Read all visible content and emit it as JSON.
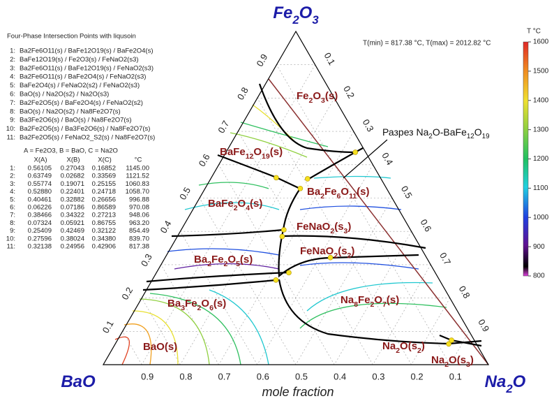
{
  "chart_data": {
    "type": "ternary",
    "corners": {
      "top": "Fe2O3",
      "left": "BaO",
      "right": "Na2O"
    },
    "axis_label": "mole fraction",
    "ticks": [
      0.1,
      0.2,
      0.3,
      0.4,
      0.5,
      0.6,
      0.7,
      0.8,
      0.9
    ],
    "temperature_text": "T(min) = 817.38 °C, T(max) = 2012.82 °C",
    "annotation": "Разрез Na2O-BaFe12O19",
    "phases": [
      "Fe2O3(s)",
      "BaFe12O19(s)",
      "Ba2Fe6O11(s)",
      "BaFe2O4(s)",
      "FeNaO2(s3)",
      "FeNaO2(s2)",
      "Ba2Fe2O5(s)",
      "Na8Fe2O7(s)",
      "Ba3Fe2O6(s)",
      "BaO(s)",
      "Na2O(s2)",
      "Na2O(s3)"
    ],
    "colorbar": {
      "title": "T °C",
      "lim": [
        800,
        1600
      ],
      "ticks": [
        800,
        900,
        1000,
        1100,
        1200,
        1300,
        1400,
        1500,
        1600
      ]
    },
    "points": {
      "title": "Four-Phase Intersection Points with liqusoin",
      "reactions": [
        {
          "id": "1:",
          "text": "Ba2Fe6O11(s) / BaFe12O19(s) / BaFe2O4(s)"
        },
        {
          "id": "2:",
          "text": "BaFe12O19(s) / Fe2O3(s) / FeNaO2(s3)"
        },
        {
          "id": "3:",
          "text": "Ba2Fe6O11(s) / BaFe12O19(s) / FeNaO2(s3)"
        },
        {
          "id": "4:",
          "text": "Ba2Fe6O11(s) / BaFe2O4(s) / FeNaO2(s3)"
        },
        {
          "id": "5:",
          "text": "BaFe2O4(s) / FeNaO2(s2) / FeNaO2(s3)"
        },
        {
          "id": "6:",
          "text": "BaO(s) / Na2O(s2) / Na2O(s3)"
        },
        {
          "id": "7:",
          "text": "Ba2Fe2O5(s) / BaFe2O4(s) / FeNaO2(s2)"
        },
        {
          "id": "8:",
          "text": "BaO(s) / Na2O(s2) / Na8Fe2O7(s)"
        },
        {
          "id": "9:",
          "text": "Ba3Fe2O6(s) / BaO(s) / Na8Fe2O7(s)"
        },
        {
          "id": "10:",
          "text": "Ba2Fe2O5(s) / Ba3Fe2O6(s) / Na8Fe2O7(s)"
        },
        {
          "id": "11:",
          "text": "Ba2Fe2O5(s) / FeNaO2_S2(s) / Na8Fe2O7(s)"
        }
      ],
      "key": "A = Fe2O3, B = BaO, C = Na2O",
      "columns": [
        "X(A)",
        "X(B)",
        "X(C)",
        "°C"
      ],
      "rows": [
        {
          "id": "1:",
          "xa": 0.56105,
          "xb": 0.27043,
          "xc": 0.16852,
          "t": {
            "value": 1145,
            "label": "1145.00"
          }
        },
        {
          "id": "2:",
          "xa": 0.63749,
          "xb": 0.02682,
          "xc": 0.33569,
          "t": 1121.52
        },
        {
          "id": "3:",
          "xa": 0.55774,
          "xb": 0.19071,
          "xc": 0.25155,
          "t": 1060.83
        },
        {
          "id": "4:",
          "xa": {
            "value": 0.5288,
            "label": "0.52880"
          },
          "xb": 0.22401,
          "xc": 0.24718,
          "t": {
            "value": 1058.7,
            "label": "1058.70"
          }
        },
        {
          "id": "5:",
          "xa": 0.40461,
          "xb": 0.32882,
          "xc": 0.26656,
          "t": 996.88
        },
        {
          "id": "6:",
          "xa": 0.06226,
          "xb": 0.07186,
          "xc": 0.86589,
          "t": 970.08
        },
        {
          "id": "7:",
          "xa": 0.38466,
          "xb": 0.34322,
          "xc": 0.27213,
          "t": 948.06
        },
        {
          "id": "8:",
          "xa": 0.07324,
          "xb": 0.05921,
          "xc": 0.86755,
          "t": {
            "value": 963.2,
            "label": "963.20"
          }
        },
        {
          "id": "9:",
          "xa": 0.25409,
          "xb": 0.42469,
          "xc": 0.32122,
          "t": 854.49
        },
        {
          "id": "10:",
          "xa": 0.27596,
          "xb": 0.38024,
          "xc": {
            "value": 0.3438,
            "label": "0.34380"
          },
          "t": {
            "value": 839.7,
            "label": "839.70"
          }
        },
        {
          "id": "11:",
          "xa": 0.32138,
          "xb": 0.24956,
          "xc": 0.42906,
          "t": 817.38
        }
      ]
    }
  }
}
